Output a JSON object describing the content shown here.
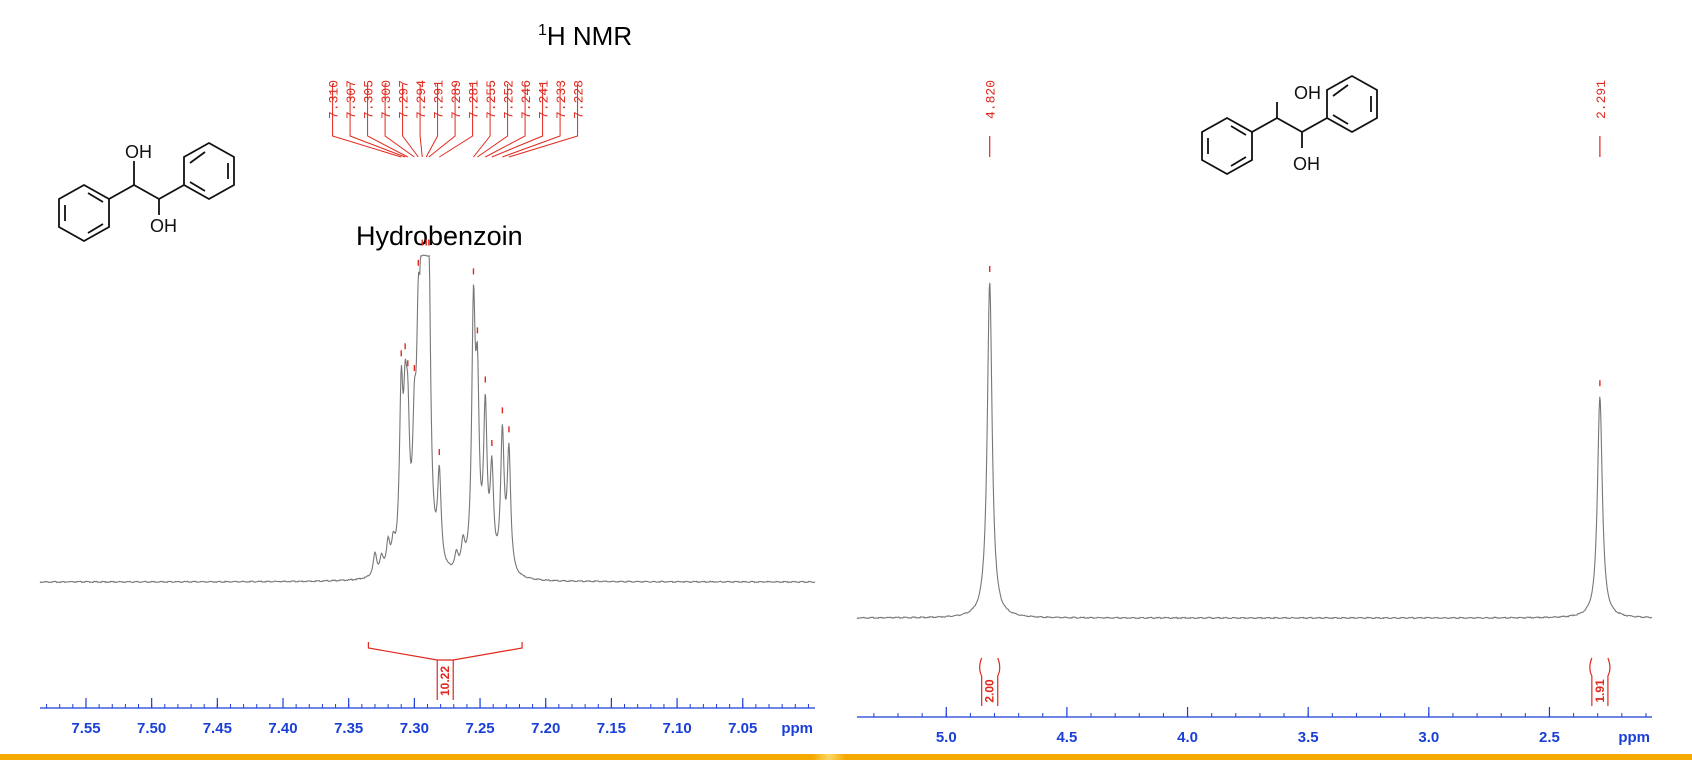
{
  "title_sup": "1",
  "title_main": "H NMR",
  "compound_name": "Hydrobenzoin",
  "structure_labels": {
    "oh_top": "OH",
    "oh_bottom": "OH"
  },
  "colors": {
    "spectrum": "#777777",
    "peak_labels": "#e0281e",
    "axis": "#1a3fd6",
    "accent_bar": "#f5a800"
  },
  "chart_data": [
    {
      "type": "line",
      "title": "",
      "xlabel": "ppm",
      "xlim": [
        7.585,
        6.995
      ],
      "x_ticks": [
        "7.55",
        "7.50",
        "7.45",
        "7.40",
        "7.35",
        "7.30",
        "7.25",
        "7.20",
        "7.15",
        "7.10",
        "7.05"
      ],
      "peak_labels": [
        "7.310",
        "7.307",
        "7.305",
        "7.300",
        "7.297",
        "7.294",
        "7.291",
        "7.289",
        "7.281",
        "7.255",
        "7.252",
        "7.246",
        "7.241",
        "7.233",
        "7.228"
      ],
      "peaks": [
        {
          "x": 7.31,
          "h": 0.51
        },
        {
          "x": 7.307,
          "h": 0.38
        },
        {
          "x": 7.305,
          "h": 0.35
        },
        {
          "x": 7.3,
          "h": 0.33
        },
        {
          "x": 7.297,
          "h": 0.55
        },
        {
          "x": 7.294,
          "h": 0.92
        },
        {
          "x": 7.291,
          "h": 1.0
        },
        {
          "x": 7.289,
          "h": 0.67
        },
        {
          "x": 7.281,
          "h": 0.28
        },
        {
          "x": 7.255,
          "h": 0.78
        },
        {
          "x": 7.252,
          "h": 0.52
        },
        {
          "x": 7.246,
          "h": 0.49
        },
        {
          "x": 7.241,
          "h": 0.3
        },
        {
          "x": 7.233,
          "h": 0.43
        },
        {
          "x": 7.228,
          "h": 0.38
        }
      ],
      "minor_peaks": [
        {
          "x": 7.33,
          "h": 0.07
        },
        {
          "x": 7.325,
          "h": 0.05
        },
        {
          "x": 7.32,
          "h": 0.09
        },
        {
          "x": 7.316,
          "h": 0.07
        },
        {
          "x": 7.268,
          "h": 0.05
        },
        {
          "x": 7.263,
          "h": 0.08
        }
      ],
      "integrals": [
        {
          "from": 7.335,
          "to": 7.218,
          "value": "10.22"
        }
      ]
    },
    {
      "type": "line",
      "title": "",
      "xlabel": "ppm",
      "xlim": [
        5.37,
        2.075
      ],
      "x_ticks": [
        "5.0",
        "4.5",
        "4.0",
        "3.5",
        "3.0",
        "2.5"
      ],
      "peak_labels": [
        "4.820",
        "2.291"
      ],
      "peaks": [
        {
          "x": 4.82,
          "h": 1.0
        },
        {
          "x": 2.291,
          "h": 0.66
        }
      ],
      "integrals": [
        {
          "from": 4.845,
          "to": 4.795,
          "value": "2.00"
        },
        {
          "from": 2.316,
          "to": 2.266,
          "value": "1.91"
        }
      ]
    }
  ]
}
